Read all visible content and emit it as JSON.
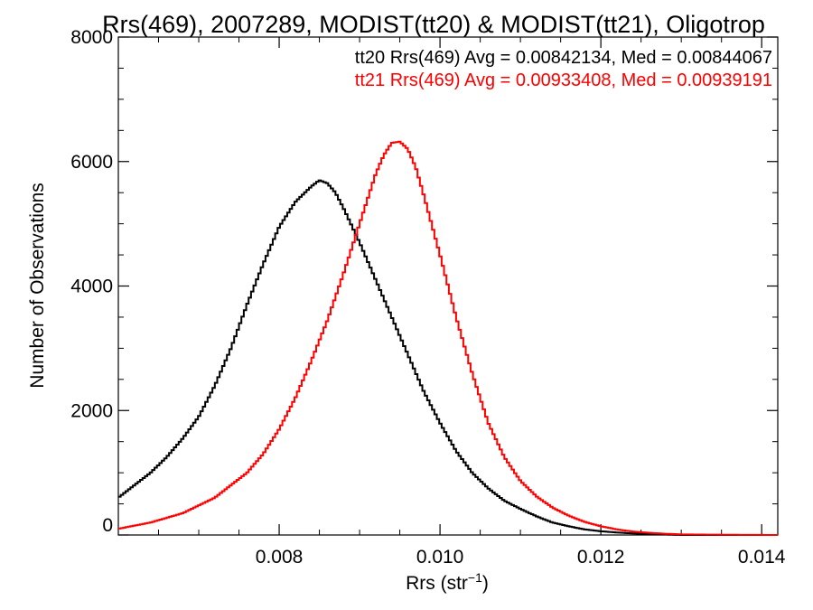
{
  "chart_data": {
    "type": "line",
    "style": "step-histogram",
    "title": "Rrs(469), 2007289, MODIST(tt20) & MODIST(tt21), Oligotrop",
    "xlabel": "Rrs (str",
    "xlabel_sup": "−1",
    "xlabel_close": ")",
    "ylabel": "Number of Observations",
    "xlim": [
      0.006,
      0.0142
    ],
    "ylim": [
      0,
      8000
    ],
    "x_ticks": [
      {
        "value": 0.008,
        "label": "0.008"
      },
      {
        "value": 0.01,
        "label": "0.010"
      },
      {
        "value": 0.012,
        "label": "0.012"
      },
      {
        "value": 0.014,
        "label": "0.014"
      }
    ],
    "y_ticks": [
      {
        "value": 0,
        "label": "0"
      },
      {
        "value": 2000,
        "label": "2000"
      },
      {
        "value": 4000,
        "label": "4000"
      },
      {
        "value": 6000,
        "label": "6000"
      },
      {
        "value": 8000,
        "label": "8000"
      }
    ],
    "grid": false,
    "legend_position": "top-right",
    "annotations": [
      "tt20 Rrs(469) Avg = 0.00842134, Med = 0.00844067",
      "tt21 Rrs(469) Avg = 0.00933408, Med = 0.00939191"
    ],
    "series": [
      {
        "color": "#000000",
        "x": [
          0.006,
          0.0062,
          0.0064,
          0.0066,
          0.0068,
          0.007,
          0.0072,
          0.0074,
          0.0076,
          0.0078,
          0.008,
          0.0082,
          0.0084,
          0.0085,
          0.0086,
          0.0087,
          0.0088,
          0.009,
          0.0092,
          0.0094,
          0.0096,
          0.0098,
          0.01,
          0.0102,
          0.0104,
          0.0106,
          0.0108,
          0.011,
          0.0112,
          0.0114,
          0.0116,
          0.0118,
          0.012,
          0.0122,
          0.0124,
          0.0126,
          0.0128,
          0.013
        ],
        "y": [
          600,
          800,
          1000,
          1250,
          1550,
          1900,
          2400,
          3000,
          3700,
          4350,
          4950,
          5350,
          5600,
          5700,
          5650,
          5500,
          5250,
          4700,
          4100,
          3500,
          2900,
          2300,
          1800,
          1350,
          1000,
          750,
          550,
          420,
          300,
          200,
          140,
          90,
          60,
          40,
          25,
          15,
          8,
          0
        ]
      },
      {
        "color": "#ff0000",
        "x": [
          0.006,
          0.0064,
          0.0068,
          0.0072,
          0.0076,
          0.0078,
          0.008,
          0.0082,
          0.0084,
          0.0086,
          0.0088,
          0.009,
          0.0091,
          0.0092,
          0.0093,
          0.0094,
          0.0095,
          0.0096,
          0.0097,
          0.0098,
          0.01,
          0.0102,
          0.0104,
          0.0106,
          0.0108,
          0.011,
          0.0112,
          0.0114,
          0.0116,
          0.0118,
          0.012,
          0.0122,
          0.0124,
          0.0126,
          0.0128,
          0.013,
          0.0134,
          0.0138,
          0.0142
        ],
        "y": [
          100,
          200,
          350,
          600,
          1000,
          1300,
          1700,
          2200,
          2800,
          3450,
          4200,
          5000,
          5400,
          5800,
          6100,
          6300,
          6320,
          6200,
          5900,
          5450,
          4500,
          3500,
          2600,
          1800,
          1250,
          870,
          620,
          440,
          310,
          210,
          140,
          90,
          55,
          35,
          20,
          10,
          5,
          2,
          0
        ]
      }
    ]
  }
}
